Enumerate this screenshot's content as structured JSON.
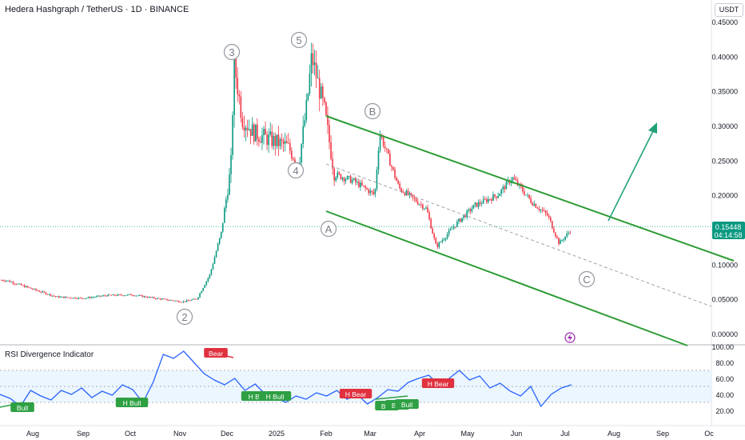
{
  "header": {
    "title": "Hedera Hashgraph / TetherUS · 1D · BINANCE",
    "currency": "USDT"
  },
  "price_axis": {
    "ticks": [
      "0.45000",
      "0.40000",
      "0.35000",
      "0.30000",
      "0.25000",
      "0.20000",
      "0.15000",
      "0.10000",
      "0.05000",
      "0.00000"
    ],
    "current_price": "0.15448",
    "countdown": "04:14:58"
  },
  "rsi_axis": {
    "ticks": [
      "100.00",
      "80.00",
      "60.00",
      "40.00",
      "20.00"
    ]
  },
  "time_axis": {
    "ticks": [
      "Aug",
      "Sep",
      "Oct",
      "Nov",
      "Dec",
      "2025",
      "Feb",
      "Mar",
      "Apr",
      "May",
      "Jun",
      "Jul",
      "Aug",
      "Sep",
      "Oc"
    ]
  },
  "indicator": {
    "title": "RSI Divergence Indicator",
    "labels": [
      "Bull",
      "H Bull",
      "Bear",
      "H Bull",
      "H Bull",
      "H Bear",
      "Bull",
      "Bull",
      "Bull",
      "H Bear"
    ]
  },
  "waves": [
    "2",
    "3",
    "4",
    "5",
    "A",
    "B",
    "C"
  ],
  "colors": {
    "up": "#089981",
    "down": "#f23645",
    "channel": "#2e9c36",
    "arrow": "#22a07a",
    "rsi": "#2962ff",
    "bull_label": "#2ea043",
    "bear_label": "#e0313f",
    "price_badge": "#089981"
  },
  "chart_data": {
    "type": "candlestick",
    "title": "Hedera Hashgraph / TetherUS · 1D · BINANCE",
    "ylim": [
      0,
      0.47
    ],
    "series": [
      {
        "name": "Hedera Hashgraph / TetherUS",
        "points": [
          [
            "2024-07-15",
            0.077
          ],
          [
            "2024-07-29",
            0.066
          ],
          [
            "2024-08-15",
            0.053
          ],
          [
            "2024-09-01",
            0.051
          ],
          [
            "2024-09-15",
            0.055
          ],
          [
            "2024-10-01",
            0.056
          ],
          [
            "2024-10-15",
            0.051
          ],
          [
            "2024-11-01",
            0.046
          ],
          [
            "2024-11-10",
            0.05
          ],
          [
            "2024-11-18",
            0.085
          ],
          [
            "2024-11-25",
            0.145
          ],
          [
            "2024-12-01",
            0.24
          ],
          [
            "2024-12-03",
            0.39
          ],
          [
            "2024-12-08",
            0.31
          ],
          [
            "2024-12-15",
            0.29
          ],
          [
            "2024-12-25",
            0.28
          ],
          [
            "2025-01-05",
            0.27
          ],
          [
            "2025-01-12",
            0.245
          ],
          [
            "2025-01-17",
            0.33
          ],
          [
            "2025-01-20",
            0.4
          ],
          [
            "2025-01-28",
            0.32
          ],
          [
            "2025-02-03",
            0.23
          ],
          [
            "2025-02-15",
            0.22
          ],
          [
            "2025-02-28",
            0.2
          ],
          [
            "2025-03-03",
            0.29
          ],
          [
            "2025-03-15",
            0.21
          ],
          [
            "2025-04-01",
            0.18
          ],
          [
            "2025-04-07",
            0.125
          ],
          [
            "2025-04-20",
            0.16
          ],
          [
            "2025-05-01",
            0.185
          ],
          [
            "2025-05-15",
            0.2
          ],
          [
            "2025-05-24",
            0.225
          ],
          [
            "2025-06-05",
            0.19
          ],
          [
            "2025-06-15",
            0.17
          ],
          [
            "2025-06-22",
            0.13
          ],
          [
            "2025-07-01",
            0.154
          ]
        ]
      }
    ],
    "rsi": {
      "name": "RSI Divergence Indicator",
      "ylim": [
        10,
        100
      ],
      "bands": [
        30,
        70
      ],
      "values": [
        40,
        35,
        25,
        45,
        38,
        33,
        45,
        40,
        48,
        36,
        44,
        39,
        52,
        46,
        30,
        55,
        90,
        85,
        94,
        80,
        66,
        58,
        52,
        60,
        45,
        53,
        40,
        36,
        30,
        38,
        34,
        42,
        38,
        45,
        34,
        40,
        28,
        36,
        46,
        44,
        55,
        60,
        64,
        52,
        60,
        70,
        58,
        63,
        48,
        54,
        44,
        38,
        50,
        25,
        40,
        48,
        52
      ]
    },
    "price_labels": [
      "0.45000",
      "0.40000",
      "0.35000",
      "0.30000",
      "0.25000",
      "0.20000",
      "0.15000",
      "0.10000",
      "0.05000",
      "0.00000"
    ],
    "time_labels": [
      "Aug",
      "Sep",
      "Oct",
      "Nov",
      "Dec",
      "2025",
      "Feb",
      "Mar",
      "Apr",
      "May",
      "Jun",
      "Jul",
      "Aug",
      "Sep",
      "Oc"
    ]
  }
}
